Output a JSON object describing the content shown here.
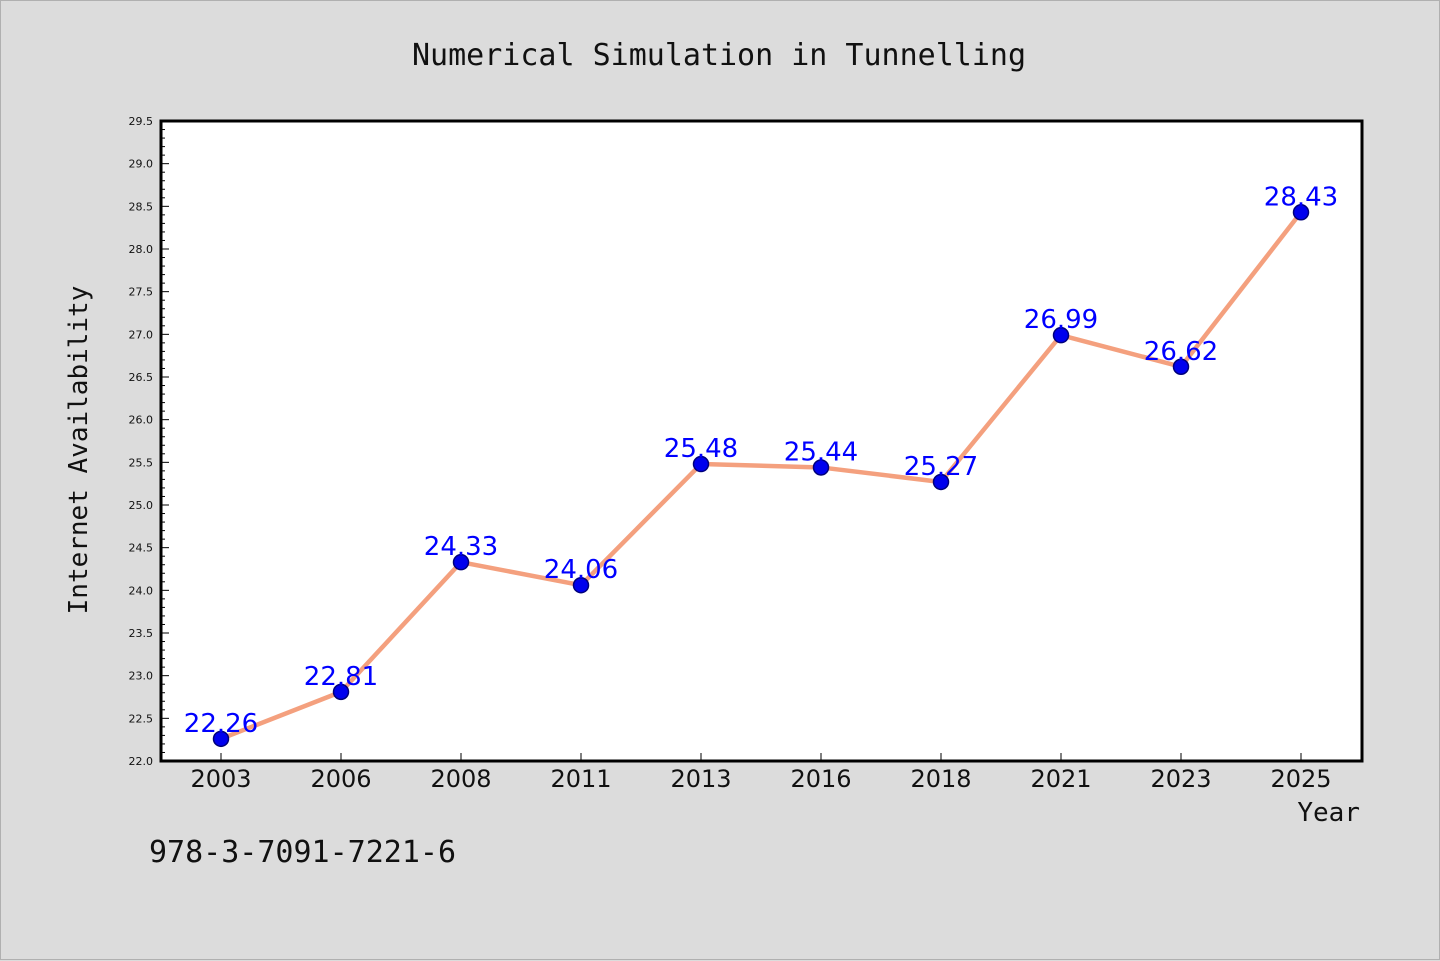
{
  "chart_data": {
    "type": "line",
    "title": "Numerical Simulation in Tunnelling",
    "xlabel": "Year",
    "ylabel": "Internet Availability",
    "categories": [
      "2003",
      "2006",
      "2008",
      "2011",
      "2013",
      "2016",
      "2018",
      "2021",
      "2023",
      "2025"
    ],
    "values": [
      22.26,
      22.81,
      24.33,
      24.06,
      25.48,
      25.44,
      25.27,
      26.99,
      26.62,
      28.43
    ],
    "data_labels": [
      "22.26",
      "22.81",
      "24.33",
      "24.06",
      "25.48",
      "25.44",
      "25.27",
      "26.99",
      "26.62",
      "28.43"
    ],
    "ylim": [
      22.0,
      29.5
    ],
    "y_ticks": [
      "22.0",
      "22.5",
      "23.0",
      "23.5",
      "24.0",
      "24.5",
      "25.0",
      "25.5",
      "26.0",
      "26.5",
      "27.0",
      "27.5",
      "28.0",
      "28.5",
      "29.0",
      "29.5"
    ],
    "grid": false,
    "legend": "none",
    "colors": {
      "line": "#f4a07e",
      "marker": "#0000ee",
      "label": "#0000ff",
      "background": "#dcdcdc",
      "plot_background": "#ffffff"
    }
  },
  "footer": {
    "isbn": "978-3-7091-7221-6"
  }
}
